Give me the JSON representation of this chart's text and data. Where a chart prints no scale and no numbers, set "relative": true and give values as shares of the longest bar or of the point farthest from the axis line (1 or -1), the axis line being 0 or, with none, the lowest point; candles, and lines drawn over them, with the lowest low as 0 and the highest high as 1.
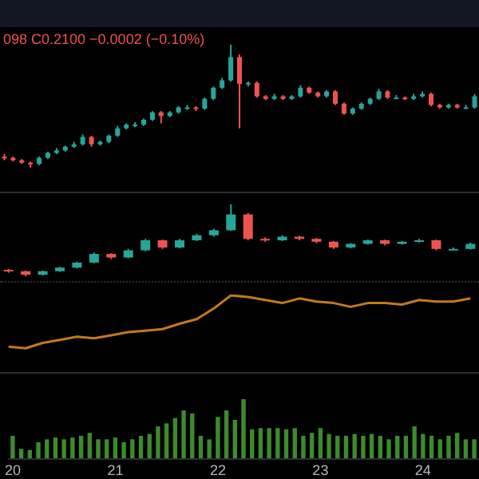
{
  "chart_data": [
    {
      "type": "candlestick",
      "relative": true,
      "annotations": [
        "098 C0.2100 −0.0002 (−0.10%)"
      ],
      "tick_labels": false,
      "categories": [
        null,
        null,
        null,
        null,
        null,
        null,
        null,
        null,
        null,
        null,
        null,
        null,
        null,
        null,
        null,
        null,
        null,
        null,
        null,
        null,
        null,
        null,
        null,
        null,
        null,
        null,
        null,
        null,
        null,
        null,
        null,
        null,
        null,
        null,
        null,
        null,
        null,
        null,
        null,
        null,
        null,
        null,
        null,
        null,
        null,
        null,
        null,
        null,
        null,
        null,
        null,
        null,
        null,
        null,
        null
      ],
      "ohlc": [
        [
          0.09,
          0.11,
          0.06,
          0.08
        ],
        [
          0.08,
          0.09,
          0.05,
          0.06
        ],
        [
          0.06,
          0.07,
          0.03,
          0.04
        ],
        [
          0.04,
          0.05,
          0,
          0.03
        ],
        [
          0.03,
          0.09,
          0.02,
          0.08
        ],
        [
          0.08,
          0.13,
          0.07,
          0.12
        ],
        [
          0.12,
          0.16,
          0.11,
          0.14
        ],
        [
          0.14,
          0.18,
          0.13,
          0.17
        ],
        [
          0.17,
          0.21,
          0.16,
          0.19
        ],
        [
          0.19,
          0.27,
          0.18,
          0.25
        ],
        [
          0.25,
          0.26,
          0.17,
          0.19
        ],
        [
          0.19,
          0.22,
          0.18,
          0.21
        ],
        [
          0.21,
          0.27,
          0.2,
          0.26
        ],
        [
          0.26,
          0.34,
          0.25,
          0.32
        ],
        [
          0.32,
          0.36,
          0.31,
          0.35
        ],
        [
          0.35,
          0.37,
          0.33,
          0.35
        ],
        [
          0.35,
          0.4,
          0.34,
          0.39
        ],
        [
          0.39,
          0.46,
          0.38,
          0.45
        ],
        [
          0.45,
          0.46,
          0.36,
          0.42
        ],
        [
          0.42,
          0.46,
          0.41,
          0.45
        ],
        [
          0.45,
          0.5,
          0.44,
          0.49
        ],
        [
          0.49,
          0.51,
          0.47,
          0.49
        ],
        [
          0.49,
          0.5,
          0.46,
          0.48
        ],
        [
          0.48,
          0.57,
          0.47,
          0.56
        ],
        [
          0.56,
          0.66,
          0.55,
          0.65
        ],
        [
          0.65,
          0.73,
          0.64,
          0.71
        ],
        [
          0.71,
          1,
          0.7,
          0.9
        ],
        [
          0.9,
          0.92,
          0.32,
          0.68
        ],
        [
          0.68,
          0.7,
          0.66,
          0.69
        ],
        [
          0.69,
          0.7,
          0.57,
          0.58
        ],
        [
          0.58,
          0.59,
          0.55,
          0.56
        ],
        [
          0.56,
          0.6,
          0.55,
          0.58
        ],
        [
          0.58,
          0.59,
          0.55,
          0.56
        ],
        [
          0.56,
          0.59,
          0.55,
          0.58
        ],
        [
          0.58,
          0.67,
          0.57,
          0.65
        ],
        [
          0.65,
          0.66,
          0.6,
          0.61
        ],
        [
          0.61,
          0.62,
          0.57,
          0.58
        ],
        [
          0.58,
          0.63,
          0.57,
          0.62
        ],
        [
          0.62,
          0.63,
          0.51,
          0.52
        ],
        [
          0.52,
          0.53,
          0.43,
          0.44
        ],
        [
          0.44,
          0.49,
          0.43,
          0.48
        ],
        [
          0.48,
          0.53,
          0.47,
          0.52
        ],
        [
          0.52,
          0.57,
          0.51,
          0.56
        ],
        [
          0.56,
          0.64,
          0.55,
          0.62
        ],
        [
          0.62,
          0.63,
          0.56,
          0.57
        ],
        [
          0.57,
          0.59,
          0.56,
          0.57
        ],
        [
          0.57,
          0.58,
          0.55,
          0.56
        ],
        [
          0.56,
          0.6,
          0.55,
          0.58
        ],
        [
          0.58,
          0.62,
          0.57,
          0.6
        ],
        [
          0.6,
          0.61,
          0.5,
          0.51
        ],
        [
          0.51,
          0.52,
          0.48,
          0.49
        ],
        [
          0.49,
          0.52,
          0.48,
          0.51
        ],
        [
          0.51,
          0.52,
          0.48,
          0.49
        ],
        [
          0.49,
          0.51,
          0.48,
          0.49
        ],
        [
          0.49,
          0.6,
          0.48,
          0.58
        ]
      ]
    },
    {
      "type": "candlestick",
      "relative": true,
      "tick_labels": false,
      "categories": [
        null,
        null,
        null,
        null,
        null,
        null,
        null,
        null,
        null,
        null,
        null,
        null,
        null,
        null,
        null,
        null,
        null,
        null,
        null,
        null,
        null,
        null,
        null,
        null,
        null,
        null,
        null,
        null
      ],
      "ohlc": [
        [
          0.09,
          0.1,
          0.05,
          0.07
        ],
        [
          0.07,
          0.08,
          0,
          0.02
        ],
        [
          0.02,
          0.08,
          0.01,
          0.07
        ],
        [
          0.07,
          0.13,
          0.06,
          0.12
        ],
        [
          0.12,
          0.2,
          0.11,
          0.19
        ],
        [
          0.19,
          0.33,
          0.18,
          0.31
        ],
        [
          0.31,
          0.32,
          0.24,
          0.26
        ],
        [
          0.26,
          0.38,
          0.25,
          0.36
        ],
        [
          0.36,
          0.52,
          0.35,
          0.5
        ],
        [
          0.5,
          0.51,
          0.38,
          0.4
        ],
        [
          0.4,
          0.52,
          0.39,
          0.5
        ],
        [
          0.5,
          0.59,
          0.49,
          0.57
        ],
        [
          0.57,
          0.66,
          0.55,
          0.64
        ],
        [
          0.64,
          1,
          0.63,
          0.86
        ],
        [
          0.86,
          0.88,
          0.5,
          0.52
        ],
        [
          0.52,
          0.54,
          0.48,
          0.5
        ],
        [
          0.5,
          0.57,
          0.49,
          0.55
        ],
        [
          0.55,
          0.56,
          0.5,
          0.52
        ],
        [
          0.52,
          0.53,
          0.46,
          0.48
        ],
        [
          0.48,
          0.49,
          0.38,
          0.4
        ],
        [
          0.4,
          0.46,
          0.39,
          0.45
        ],
        [
          0.45,
          0.51,
          0.44,
          0.5
        ],
        [
          0.5,
          0.51,
          0.43,
          0.45
        ],
        [
          0.45,
          0.49,
          0.44,
          0.48
        ],
        [
          0.48,
          0.52,
          0.47,
          0.5
        ],
        [
          0.5,
          0.51,
          0.36,
          0.38
        ],
        [
          0.38,
          0.4,
          0.37,
          0.38
        ],
        [
          0.38,
          0.47,
          0.37,
          0.45
        ]
      ]
    },
    {
      "type": "line",
      "relative": true,
      "tick_labels": false,
      "marker": "none",
      "categories": [
        null,
        null,
        null,
        null,
        null,
        null,
        null,
        null,
        null,
        null,
        null,
        null,
        null,
        null,
        null,
        null,
        null,
        null,
        null,
        null,
        null,
        null,
        null,
        null,
        null,
        null,
        null,
        null
      ],
      "series": [
        {
          "color": "#c47a1c",
          "values": [
            0.33,
            0.31,
            0.38,
            0.42,
            0.46,
            0.44,
            0.48,
            0.52,
            0.54,
            0.56,
            0.63,
            0.69,
            0.83,
            1,
            0.98,
            0.94,
            0.9,
            0.96,
            0.92,
            0.9,
            0.85,
            0.9,
            0.9,
            0.88,
            0.94,
            0.92,
            0.92,
            0.96
          ]
        }
      ]
    },
    {
      "type": "bar",
      "relative": true,
      "tick_labels": "x",
      "categories": [
        "20",
        null,
        null,
        null,
        null,
        null,
        null,
        null,
        null,
        null,
        null,
        null,
        "21",
        null,
        null,
        null,
        null,
        null,
        null,
        null,
        null,
        null,
        null,
        null,
        "22",
        null,
        null,
        null,
        null,
        null,
        null,
        null,
        null,
        null,
        null,
        null,
        "23",
        null,
        null,
        null,
        null,
        null,
        null,
        null,
        null,
        null,
        null,
        null,
        "24",
        null,
        null,
        null,
        null,
        null,
        null
      ],
      "series": [
        {
          "color": "#3d8b2c",
          "values": [
            0.38,
            0.16,
            0.14,
            0.27,
            0.32,
            0.35,
            0.32,
            0.35,
            0.38,
            0.43,
            0.32,
            0.32,
            0.35,
            0.27,
            0.32,
            0.38,
            0.41,
            0.54,
            0.59,
            0.68,
            0.81,
            0.76,
            0.38,
            0.32,
            0.7,
            0.81,
            0.65,
            1,
            0.49,
            0.51,
            0.51,
            0.51,
            0.49,
            0.51,
            0.38,
            0.43,
            0.51,
            0.41,
            0.38,
            0.38,
            0.41,
            0.38,
            0.41,
            0.38,
            0.32,
            0.38,
            0.38,
            0.54,
            0.41,
            0.38,
            0.32,
            0.38,
            0.43,
            0.32,
            0.32
          ]
        }
      ]
    }
  ]
}
